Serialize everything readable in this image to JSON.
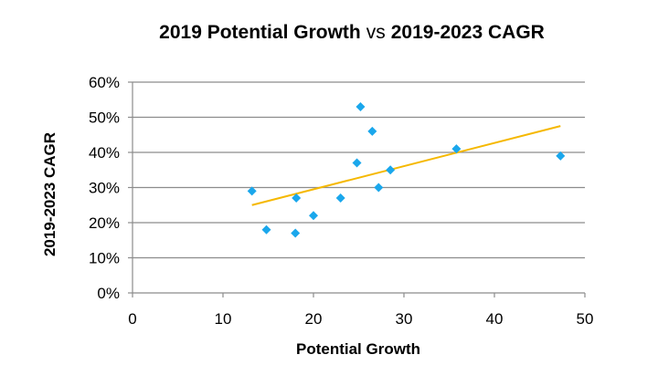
{
  "chart_data": {
    "type": "scatter",
    "title_part1": "2019 Potential Growth",
    "title_vs": "vs",
    "title_part2": "2019-2023 CAGR",
    "xlabel": "Potential Growth",
    "ylabel": "2019-2023 CAGR",
    "xlim": [
      0,
      50
    ],
    "ylim": [
      0,
      0.6
    ],
    "x_ticks": [
      0,
      10,
      20,
      30,
      40,
      50
    ],
    "x_tick_labels": [
      "0",
      "10",
      "20",
      "30",
      "40",
      "50"
    ],
    "y_ticks": [
      0,
      0.1,
      0.2,
      0.3,
      0.4,
      0.5,
      0.6
    ],
    "y_tick_labels": [
      "0%",
      "10%",
      "20%",
      "30%",
      "40%",
      "50%",
      "60%"
    ],
    "grid": "horizontal",
    "marker": "diamond",
    "marker_color": "#1aa7ec",
    "trendline_color": "#f5b800",
    "points": [
      {
        "x": 13.2,
        "y": 0.29
      },
      {
        "x": 14.8,
        "y": 0.18
      },
      {
        "x": 18.0,
        "y": 0.17
      },
      {
        "x": 18.1,
        "y": 0.27
      },
      {
        "x": 20.0,
        "y": 0.22
      },
      {
        "x": 23.0,
        "y": 0.27
      },
      {
        "x": 24.8,
        "y": 0.37
      },
      {
        "x": 25.2,
        "y": 0.53
      },
      {
        "x": 26.5,
        "y": 0.46
      },
      {
        "x": 27.2,
        "y": 0.3
      },
      {
        "x": 28.5,
        "y": 0.35
      },
      {
        "x": 35.8,
        "y": 0.41
      },
      {
        "x": 47.3,
        "y": 0.39
      }
    ],
    "trendline": {
      "x": [
        13.2,
        47.3
      ],
      "y": [
        0.25,
        0.475
      ]
    }
  }
}
